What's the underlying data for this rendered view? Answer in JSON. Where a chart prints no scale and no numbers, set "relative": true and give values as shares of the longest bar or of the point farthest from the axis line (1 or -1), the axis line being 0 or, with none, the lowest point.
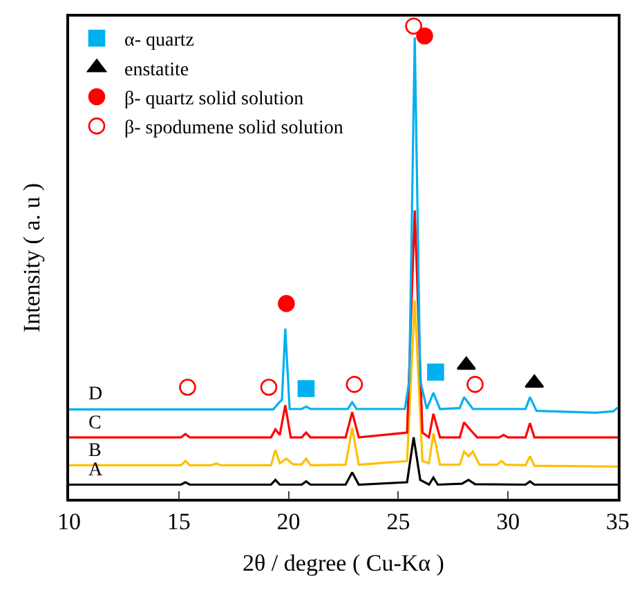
{
  "chart_data": {
    "type": "line",
    "relative": true,
    "xlabel": "2θ / degree ( Cu-Kα )",
    "ylabel": "Intensity ( a. u )",
    "xlim": [
      10,
      35
    ],
    "xticks": [
      10,
      15,
      20,
      25,
      30,
      35
    ],
    "tick_labels": "x",
    "legend": "top left",
    "line_style": "solid",
    "marker": "none",
    "series": [
      {
        "name": "A",
        "color": "#000000",
        "x": [
          10,
          15.1,
          15.3,
          15.5,
          19.2,
          19.4,
          19.6,
          20.6,
          20.8,
          21.0,
          22.6,
          22.9,
          23.2,
          25.4,
          25.7,
          26.0,
          26.4,
          26.6,
          26.8,
          27.9,
          28.2,
          28.5,
          30.8,
          31.0,
          31.2,
          35
        ],
        "values": [
          0.03,
          0.03,
          0.035,
          0.03,
          0.03,
          0.04,
          0.03,
          0.03,
          0.037,
          0.03,
          0.03,
          0.056,
          0.03,
          0.035,
          0.13,
          0.04,
          0.03,
          0.045,
          0.03,
          0.032,
          0.04,
          0.031,
          0.03,
          0.037,
          0.03,
          0.03
        ]
      },
      {
        "name": "B",
        "color": "#ffc000",
        "x": [
          10,
          15.1,
          15.3,
          15.5,
          16.5,
          16.7,
          16.9,
          19.2,
          19.4,
          19.6,
          19.9,
          20.2,
          20.6,
          20.8,
          21.0,
          22.6,
          22.9,
          23.2,
          25.4,
          25.75,
          26.1,
          26.4,
          26.6,
          26.9,
          27.8,
          28.0,
          28.2,
          28.4,
          28.7,
          29.5,
          29.7,
          29.9,
          30.8,
          31.0,
          31.2,
          35
        ],
        "values": [
          0.071,
          0.071,
          0.08,
          0.071,
          0.071,
          0.075,
          0.071,
          0.071,
          0.103,
          0.075,
          0.085,
          0.073,
          0.073,
          0.085,
          0.071,
          0.072,
          0.15,
          0.072,
          0.08,
          0.42,
          0.08,
          0.075,
          0.139,
          0.072,
          0.072,
          0.1,
          0.09,
          0.1,
          0.072,
          0.072,
          0.08,
          0.072,
          0.071,
          0.09,
          0.07,
          0.068
        ]
      },
      {
        "name": "C",
        "color": "#ff0000",
        "x": [
          10,
          15.1,
          15.3,
          15.5,
          19.2,
          19.4,
          19.6,
          19.85,
          20.1,
          20.6,
          20.8,
          21.0,
          22.6,
          22.9,
          23.2,
          25.4,
          25.75,
          26.1,
          26.4,
          26.6,
          26.9,
          27.8,
          28.0,
          28.3,
          28.6,
          29.6,
          29.8,
          30.0,
          30.8,
          31.0,
          31.2,
          35
        ],
        "values": [
          0.13,
          0.13,
          0.137,
          0.13,
          0.13,
          0.147,
          0.135,
          0.198,
          0.13,
          0.13,
          0.14,
          0.13,
          0.13,
          0.183,
          0.13,
          0.14,
          0.61,
          0.14,
          0.13,
          0.18,
          0.13,
          0.13,
          0.162,
          0.145,
          0.13,
          0.13,
          0.135,
          0.13,
          0.13,
          0.16,
          0.13,
          0.13
        ]
      },
      {
        "name": "D",
        "color": "#00b0f0",
        "x": [
          10,
          19.3,
          19.5,
          19.7,
          19.85,
          20.05,
          20.6,
          20.8,
          21.0,
          22.7,
          22.9,
          23.1,
          25.3,
          25.5,
          25.75,
          26.0,
          26.3,
          26.6,
          26.9,
          27.8,
          28.0,
          28.4,
          29.5,
          30.8,
          31.0,
          31.3,
          34.0,
          34.8,
          35
        ],
        "values": [
          0.189,
          0.189,
          0.2,
          0.21,
          0.36,
          0.19,
          0.19,
          0.195,
          0.19,
          0.19,
          0.204,
          0.19,
          0.19,
          0.25,
          0.976,
          0.25,
          0.19,
          0.224,
          0.19,
          0.192,
          0.215,
          0.19,
          0.19,
          0.19,
          0.215,
          0.186,
          0.182,
          0.185,
          0.193
        ]
      },
      {
        "type": "scatter",
        "name": "α- quartz",
        "marker": "square",
        "color": "#00b0f0",
        "x": [
          20.8,
          26.7
        ],
        "values": [
          0.233,
          0.268
        ]
      },
      {
        "type": "scatter",
        "name": "enstatite",
        "marker": "triangle",
        "color": "#000000",
        "x": [
          28.1,
          31.2
        ],
        "values": [
          0.283,
          0.245
        ]
      },
      {
        "type": "scatter",
        "name": "β- quartz solid solution",
        "marker": "circle",
        "color": "#ff0000",
        "x": [
          19.9,
          26.2
        ],
        "values": [
          0.413,
          0.979
        ]
      },
      {
        "type": "scatter",
        "name": "β- spodumene solid solution",
        "marker": "circle-open",
        "color": "#ff0000",
        "x": [
          15.4,
          19.1,
          23.0,
          28.5,
          25.7
        ],
        "values": [
          0.236,
          0.236,
          0.242,
          0.242,
          1.0
        ]
      }
    ]
  }
}
